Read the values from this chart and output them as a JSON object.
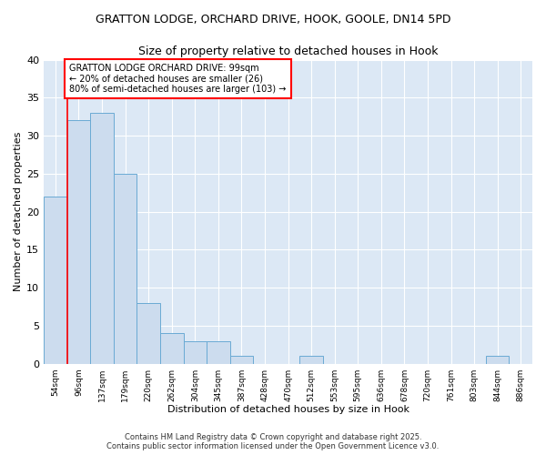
{
  "title_line1": "GRATTON LODGE, ORCHARD DRIVE, HOOK, GOOLE, DN14 5PD",
  "title_line2": "Size of property relative to detached houses in Hook",
  "xlabel": "Distribution of detached houses by size in Hook",
  "ylabel": "Number of detached properties",
  "categories": [
    "54sqm",
    "96sqm",
    "137sqm",
    "179sqm",
    "220sqm",
    "262sqm",
    "304sqm",
    "345sqm",
    "387sqm",
    "428sqm",
    "470sqm",
    "512sqm",
    "553sqm",
    "595sqm",
    "636sqm",
    "678sqm",
    "720sqm",
    "761sqm",
    "803sqm",
    "844sqm",
    "886sqm"
  ],
  "values": [
    22,
    32,
    33,
    25,
    8,
    4,
    3,
    3,
    1,
    0,
    0,
    1,
    0,
    0,
    0,
    0,
    0,
    0,
    0,
    1,
    0
  ],
  "bar_color": "#ccdcee",
  "bar_edge_color": "#6aaad4",
  "red_line_color": "red",
  "annotation_text": "GRATTON LODGE ORCHARD DRIVE: 99sqm\n← 20% of detached houses are smaller (26)\n80% of semi-detached houses are larger (103) →",
  "annotation_box_color": "white",
  "annotation_edge_color": "red",
  "ylim": [
    0,
    40
  ],
  "yticks": [
    0,
    5,
    10,
    15,
    20,
    25,
    30,
    35,
    40
  ],
  "plot_bg_color": "#dce8f5",
  "fig_bg_color": "#ffffff",
  "grid_color": "white",
  "footer_text": "Contains HM Land Registry data © Crown copyright and database right 2025.\nContains public sector information licensed under the Open Government Licence v3.0.",
  "red_line_index": 1
}
